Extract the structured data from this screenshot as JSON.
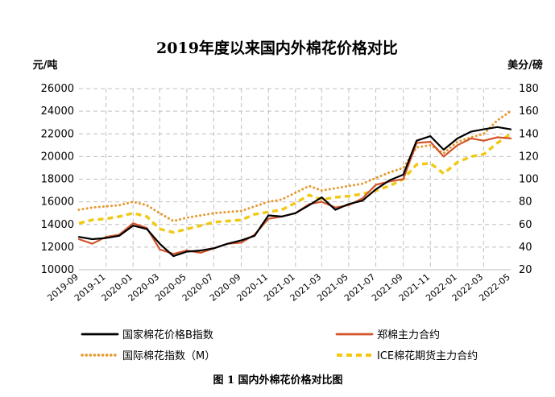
{
  "chart_data": {
    "type": "line",
    "title": "2019年度以来国内外棉花价格对比",
    "y_left_label": "元/吨",
    "y_right_label": "美分/磅",
    "y_left_range": [
      10000,
      26000
    ],
    "y_right_range": [
      20,
      180
    ],
    "y_left_ticks": [
      "10000",
      "12000",
      "14000",
      "16000",
      "18000",
      "20000",
      "22000",
      "24000",
      "26000"
    ],
    "y_right_ticks": [
      "20",
      "40",
      "60",
      "80",
      "100",
      "120",
      "140",
      "160",
      "180"
    ],
    "x_ticks": [
      "2019-09",
      "2019-11",
      "2020-01",
      "2020-03",
      "2020-05",
      "2020-07",
      "2020-09",
      "2020-11",
      "2021-01",
      "2021-03",
      "2021-05",
      "2021-07",
      "2021-09",
      "2021-11",
      "2022-01",
      "2022-03",
      "2022-05"
    ],
    "grid": true,
    "legend_placement": "bottom",
    "series": [
      {
        "name": "国家棉花价格B指数",
        "axis": "left",
        "color": "#000000",
        "style": "solid",
        "points": [
          [
            "2019-09",
            12900
          ],
          [
            "2019-10",
            12700
          ],
          [
            "2019-11",
            12800
          ],
          [
            "2019-12",
            13000
          ],
          [
            "2020-01",
            13900
          ],
          [
            "2020-02",
            13600
          ],
          [
            "2020-03",
            12300
          ],
          [
            "2020-04",
            11200
          ],
          [
            "2020-05",
            11600
          ],
          [
            "2020-06",
            11700
          ],
          [
            "2020-07",
            11900
          ],
          [
            "2020-08",
            12300
          ],
          [
            "2020-09",
            12600
          ],
          [
            "2020-10",
            13000
          ],
          [
            "2020-11",
            14800
          ],
          [
            "2020-12",
            14700
          ],
          [
            "2021-01",
            15000
          ],
          [
            "2021-02",
            15700
          ],
          [
            "2021-03",
            16400
          ],
          [
            "2021-04",
            15300
          ],
          [
            "2021-05",
            15800
          ],
          [
            "2021-06",
            16100
          ],
          [
            "2021-07",
            17100
          ],
          [
            "2021-08",
            17900
          ],
          [
            "2021-09",
            18400
          ],
          [
            "2021-10",
            21400
          ],
          [
            "2021-11",
            21800
          ],
          [
            "2021-12",
            20600
          ],
          [
            "2022-01",
            21600
          ],
          [
            "2022-02",
            22200
          ],
          [
            "2022-03",
            22400
          ],
          [
            "2022-04",
            22600
          ],
          [
            "2022-05",
            22400
          ]
        ]
      },
      {
        "name": "郑棉主力合约",
        "axis": "left",
        "color": "#d2542a",
        "style": "solid",
        "points": [
          [
            "2019-09",
            12700
          ],
          [
            "2019-10",
            12300
          ],
          [
            "2019-11",
            12900
          ],
          [
            "2019-12",
            13100
          ],
          [
            "2020-01",
            14100
          ],
          [
            "2020-02",
            13700
          ],
          [
            "2020-03",
            11800
          ],
          [
            "2020-04",
            11400
          ],
          [
            "2020-05",
            11700
          ],
          [
            "2020-06",
            11500
          ],
          [
            "2020-07",
            11900
          ],
          [
            "2020-08",
            12300
          ],
          [
            "2020-09",
            12400
          ],
          [
            "2020-10",
            13100
          ],
          [
            "2020-11",
            14500
          ],
          [
            "2020-12",
            14700
          ],
          [
            "2021-01",
            15000
          ],
          [
            "2021-02",
            15800
          ],
          [
            "2021-03",
            16000
          ],
          [
            "2021-04",
            15500
          ],
          [
            "2021-05",
            15700
          ],
          [
            "2021-06",
            16300
          ],
          [
            "2021-07",
            17500
          ],
          [
            "2021-08",
            17800
          ],
          [
            "2021-09",
            18000
          ],
          [
            "2021-10",
            21200
          ],
          [
            "2021-11",
            21300
          ],
          [
            "2021-12",
            20000
          ],
          [
            "2022-01",
            21000
          ],
          [
            "2022-02",
            21600
          ],
          [
            "2022-03",
            21400
          ],
          [
            "2022-04",
            21700
          ],
          [
            "2022-05",
            21600
          ]
        ]
      },
      {
        "name": "国际棉花指数（M）",
        "axis": "right",
        "color": "#e69a2e",
        "style": "dotted",
        "points": [
          [
            "2019-09",
            73
          ],
          [
            "2019-10",
            75
          ],
          [
            "2019-11",
            76
          ],
          [
            "2019-12",
            77
          ],
          [
            "2020-01",
            80
          ],
          [
            "2020-02",
            77
          ],
          [
            "2020-03",
            70
          ],
          [
            "2020-04",
            63
          ],
          [
            "2020-05",
            66
          ],
          [
            "2020-06",
            68
          ],
          [
            "2020-07",
            70
          ],
          [
            "2020-08",
            71
          ],
          [
            "2020-09",
            72
          ],
          [
            "2020-10",
            76
          ],
          [
            "2020-11",
            80
          ],
          [
            "2020-12",
            82
          ],
          [
            "2021-01",
            88
          ],
          [
            "2021-02",
            94
          ],
          [
            "2021-03",
            90
          ],
          [
            "2021-04",
            92
          ],
          [
            "2021-05",
            94
          ],
          [
            "2021-06",
            96
          ],
          [
            "2021-07",
            101
          ],
          [
            "2021-08",
            106
          ],
          [
            "2021-09",
            110
          ],
          [
            "2021-10",
            128
          ],
          [
            "2021-11",
            130
          ],
          [
            "2021-12",
            123
          ],
          [
            "2022-01",
            133
          ],
          [
            "2022-02",
            137
          ],
          [
            "2022-03",
            140
          ],
          [
            "2022-04",
            152
          ],
          [
            "2022-05",
            160
          ]
        ]
      },
      {
        "name": "ICE棉花期货主力合约",
        "axis": "right",
        "color": "#f2c811",
        "style": "dashed",
        "points": [
          [
            "2019-09",
            61
          ],
          [
            "2019-10",
            64
          ],
          [
            "2019-11",
            65
          ],
          [
            "2019-12",
            67
          ],
          [
            "2020-01",
            70
          ],
          [
            "2020-02",
            67
          ],
          [
            "2020-03",
            56
          ],
          [
            "2020-04",
            53
          ],
          [
            "2020-05",
            56
          ],
          [
            "2020-06",
            59
          ],
          [
            "2020-07",
            62
          ],
          [
            "2020-08",
            63
          ],
          [
            "2020-09",
            64
          ],
          [
            "2020-10",
            69
          ],
          [
            "2020-11",
            71
          ],
          [
            "2020-12",
            73
          ],
          [
            "2021-01",
            79
          ],
          [
            "2021-02",
            86
          ],
          [
            "2021-03",
            82
          ],
          [
            "2021-04",
            84
          ],
          [
            "2021-05",
            85
          ],
          [
            "2021-06",
            87
          ],
          [
            "2021-07",
            90
          ],
          [
            "2021-08",
            94
          ],
          [
            "2021-09",
            100
          ],
          [
            "2021-10",
            113
          ],
          [
            "2021-11",
            114
          ],
          [
            "2021-12",
            105
          ],
          [
            "2022-01",
            115
          ],
          [
            "2022-02",
            120
          ],
          [
            "2022-03",
            122
          ],
          [
            "2022-04",
            132
          ],
          [
            "2022-05",
            140
          ]
        ]
      }
    ],
    "caption": "图 1    国内外棉花价格对比图"
  }
}
